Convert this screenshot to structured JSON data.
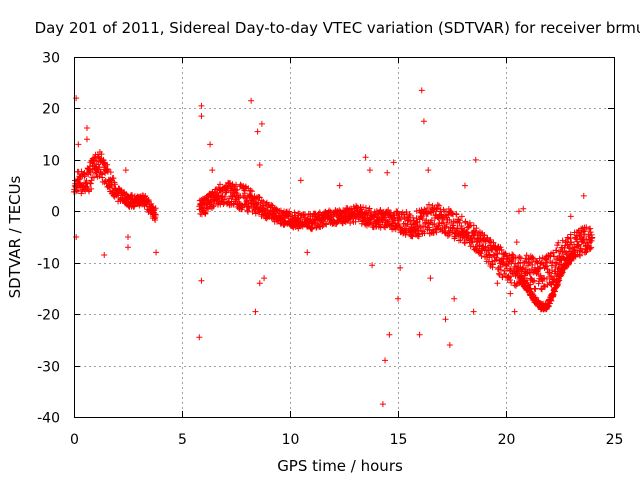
{
  "chart_data": {
    "type": "scatter",
    "title": "Day 201 of 2011, Sidereal Day-to-day VTEC variation (SDTVAR) for receiver brmu",
    "xlabel": "GPS time / hours",
    "ylabel": "SDTVAR / TECUs",
    "xlim": [
      0,
      25
    ],
    "ylim": [
      -40,
      30
    ],
    "xticks": [
      0,
      5,
      10,
      15,
      20,
      25
    ],
    "yticks": [
      -40,
      -30,
      -20,
      -10,
      0,
      10,
      20,
      30
    ],
    "xtick_labels": [
      "0",
      "5",
      "10",
      "15",
      "20",
      "25"
    ],
    "ytick_labels": [
      "-40",
      "-30",
      "-20",
      "-10",
      "0",
      "10",
      "20",
      "30"
    ],
    "grid": true,
    "marker": "+",
    "color": "#ff0000",
    "trend": [
      [
        0.0,
        5.0
      ],
      [
        0.2,
        6.0
      ],
      [
        0.5,
        5.5
      ],
      [
        0.8,
        7.0
      ],
      [
        1.0,
        8.5
      ],
      [
        1.2,
        9.0
      ],
      [
        1.5,
        7.0
      ],
      [
        1.8,
        5.0
      ],
      [
        2.0,
        3.5
      ],
      [
        2.3,
        2.5
      ],
      [
        2.6,
        2.0
      ],
      [
        3.0,
        2.0
      ],
      [
        3.3,
        2.0
      ],
      [
        3.6,
        0.0
      ],
      [
        3.8,
        -0.5
      ],
      [
        5.8,
        0.5
      ],
      [
        6.2,
        1.5
      ],
      [
        6.5,
        3.0
      ],
      [
        7.0,
        3.5
      ],
      [
        7.5,
        3.0
      ],
      [
        8.0,
        2.5
      ],
      [
        8.5,
        1.0
      ],
      [
        9.0,
        0.0
      ],
      [
        9.5,
        -1.0
      ],
      [
        10.0,
        -1.5
      ],
      [
        10.5,
        -2.0
      ],
      [
        11.0,
        -2.0
      ],
      [
        11.5,
        -1.5
      ],
      [
        12.0,
        -1.0
      ],
      [
        12.5,
        -1.0
      ],
      [
        13.0,
        -0.5
      ],
      [
        13.5,
        -1.0
      ],
      [
        14.0,
        -1.5
      ],
      [
        14.5,
        -1.5
      ],
      [
        15.0,
        -2.0
      ],
      [
        15.5,
        -2.5
      ],
      [
        16.0,
        -2.5
      ],
      [
        16.5,
        -1.5
      ],
      [
        17.0,
        -1.5
      ],
      [
        17.5,
        -2.5
      ],
      [
        18.0,
        -3.5
      ],
      [
        18.5,
        -5.0
      ],
      [
        19.0,
        -7.0
      ],
      [
        19.5,
        -9.0
      ],
      [
        20.0,
        -10.5
      ],
      [
        20.5,
        -12.0
      ],
      [
        21.0,
        -11.5
      ],
      [
        21.5,
        -12.5
      ],
      [
        22.0,
        -11.5
      ],
      [
        22.5,
        -9.0
      ],
      [
        23.0,
        -7.5
      ],
      [
        23.5,
        -6.0
      ],
      [
        24.0,
        -4.5
      ]
    ],
    "spread": [
      [
        0.0,
        2.0
      ],
      [
        1.0,
        3.0
      ],
      [
        1.5,
        2.5
      ],
      [
        2.0,
        1.5
      ],
      [
        3.0,
        1.0
      ],
      [
        3.8,
        1.5
      ],
      [
        5.8,
        1.5
      ],
      [
        6.5,
        2.0
      ],
      [
        8.0,
        2.5
      ],
      [
        9.0,
        1.5
      ],
      [
        12.0,
        1.5
      ],
      [
        15.0,
        2.0
      ],
      [
        16.5,
        3.0
      ],
      [
        18.0,
        2.5
      ],
      [
        19.0,
        2.5
      ],
      [
        20.0,
        3.0
      ],
      [
        21.0,
        3.0
      ],
      [
        22.0,
        3.5
      ],
      [
        24.0,
        2.5
      ]
    ],
    "segments": [
      [
        0.0,
        3.8
      ],
      [
        5.8,
        24.0
      ]
    ],
    "lower_branch": [
      [
        20.6,
        -13.0
      ],
      [
        21.0,
        -15.0
      ],
      [
        21.3,
        -17.0
      ],
      [
        21.6,
        -18.5
      ],
      [
        21.9,
        -18.5
      ],
      [
        22.2,
        -16.0
      ],
      [
        22.5,
        -12.5
      ],
      [
        22.8,
        -10.0
      ],
      [
        23.2,
        -8.0
      ]
    ],
    "outliers": [
      [
        0.1,
        22.0
      ],
      [
        0.2,
        13.0
      ],
      [
        0.1,
        -5.0
      ],
      [
        0.6,
        16.2
      ],
      [
        0.6,
        14.0
      ],
      [
        1.0,
        11.0
      ],
      [
        1.4,
        -8.5
      ],
      [
        2.4,
        8.0
      ],
      [
        2.5,
        -5.0
      ],
      [
        2.5,
        -7.0
      ],
      [
        3.8,
        -8.0
      ],
      [
        5.9,
        20.5
      ],
      [
        5.9,
        18.5
      ],
      [
        5.8,
        -24.5
      ],
      [
        5.9,
        -13.5
      ],
      [
        6.3,
        13.0
      ],
      [
        6.4,
        8.0
      ],
      [
        8.2,
        21.5
      ],
      [
        8.5,
        15.5
      ],
      [
        8.7,
        17.0
      ],
      [
        8.4,
        -19.5
      ],
      [
        8.6,
        -14.0
      ],
      [
        8.8,
        -13.0
      ],
      [
        8.6,
        9.0
      ],
      [
        10.5,
        6.0
      ],
      [
        10.8,
        -8.0
      ],
      [
        12.3,
        5.0
      ],
      [
        13.5,
        10.5
      ],
      [
        13.7,
        8.0
      ],
      [
        13.8,
        -10.5
      ],
      [
        14.3,
        -37.5
      ],
      [
        14.4,
        -29.0
      ],
      [
        14.5,
        7.5
      ],
      [
        14.6,
        -24.0
      ],
      [
        15.0,
        -17.0
      ],
      [
        15.1,
        -11.0
      ],
      [
        14.8,
        9.5
      ],
      [
        16.1,
        23.5
      ],
      [
        16.2,
        17.5
      ],
      [
        16.0,
        -24.0
      ],
      [
        16.4,
        8.0
      ],
      [
        16.5,
        -13.0
      ],
      [
        17.2,
        -21.0
      ],
      [
        17.4,
        -26.0
      ],
      [
        17.6,
        -17.0
      ],
      [
        18.1,
        5.0
      ],
      [
        18.6,
        10.0
      ],
      [
        18.5,
        -19.5
      ],
      [
        19.6,
        -14.0
      ],
      [
        20.2,
        -16.0
      ],
      [
        20.4,
        -19.5
      ],
      [
        20.5,
        -6.0
      ],
      [
        20.6,
        0.0
      ],
      [
        20.8,
        0.5
      ],
      [
        23.0,
        -1.0
      ],
      [
        23.6,
        3.0
      ]
    ]
  }
}
